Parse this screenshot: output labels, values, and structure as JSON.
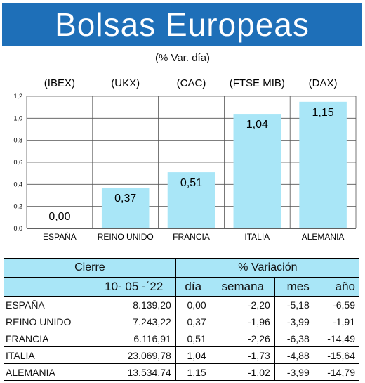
{
  "title": "Bolsas Europeas",
  "subtitle": "(% Var. día)",
  "chart_data": {
    "type": "bar",
    "categories": [
      "ESPAÑA",
      "REINO UNIDO",
      "FRANCIA",
      "ITALIA",
      "ALEMANIA"
    ],
    "indices": [
      "(IBEX)",
      "(UKX)",
      "(CAC)",
      "(FTSE MIB)",
      "(DAX)"
    ],
    "values": [
      0.0,
      0.37,
      0.51,
      1.04,
      1.15
    ],
    "value_labels": [
      "0,00",
      "0,37",
      "0,51",
      "1,04",
      "1,15"
    ],
    "yticks": [
      "0,0",
      "0,2",
      "0,4",
      "0,6",
      "0,8",
      "1,0",
      "1,2"
    ],
    "ylim": [
      0,
      1.2
    ],
    "grid": true,
    "bar_color": "#a9e6f7"
  },
  "table": {
    "header": {
      "cierre": "Cierre",
      "variacion": "% Variación",
      "date": "10- 05 -´22",
      "dia": "día",
      "semana": "semana",
      "mes": "mes",
      "ano": "año"
    },
    "rows": [
      {
        "name": "ESPAÑA",
        "cierre": "8.139,20",
        "dia": "0,00",
        "semana": "-2,20",
        "mes": "-5,18",
        "ano": "-6,59"
      },
      {
        "name": "REINO UNIDO",
        "cierre": "7.243,22",
        "dia": "0,37",
        "semana": "-1,96",
        "mes": "-3,99",
        "ano": "-1,91"
      },
      {
        "name": "FRANCIA",
        "cierre": "6.116,91",
        "dia": "0,51",
        "semana": "-2,26",
        "mes": "-6,38",
        "ano": "-14,49"
      },
      {
        "name": "ITALIA",
        "cierre": "23.069,78",
        "dia": "1,04",
        "semana": "-1,73",
        "mes": "-4,88",
        "ano": "-15,64"
      },
      {
        "name": "ALEMANIA",
        "cierre": "13.534,74",
        "dia": "1,15",
        "semana": "-1,02",
        "mes": "-3,99",
        "ano": "-14,79"
      }
    ]
  }
}
